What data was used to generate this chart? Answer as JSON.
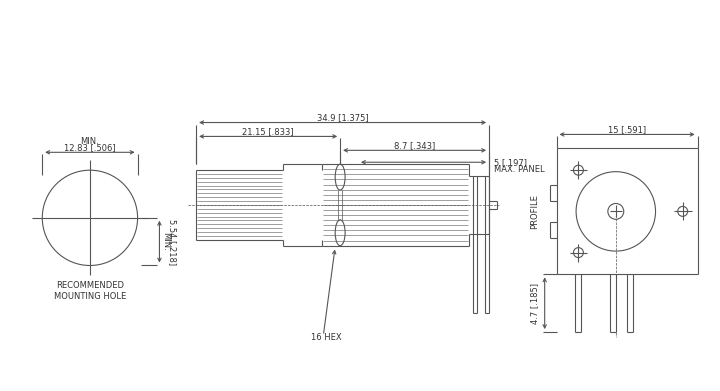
{
  "bg_color": "#ffffff",
  "lc": "#555555",
  "tc": "#333333",
  "fs": 6.0,
  "annotations": {
    "dim1": "34.9 [1.375]",
    "dim2": "21.15 [.833]",
    "dim3": "8.7 [.343]",
    "dim4": "5 [.197]",
    "dim4b": "MAX. PANEL",
    "dim5": "12.83 [.506]",
    "dim5b": "MIN.",
    "dim6": "5.54 [.218]",
    "dim6b": "MIN.",
    "dim7": "16 HEX",
    "dim8": "15 [.591]",
    "dim9": "4.7 [.185]",
    "label_hole": "RECOMMENDED\nMOUNTING HOLE",
    "label_profile": "PROFILE"
  }
}
